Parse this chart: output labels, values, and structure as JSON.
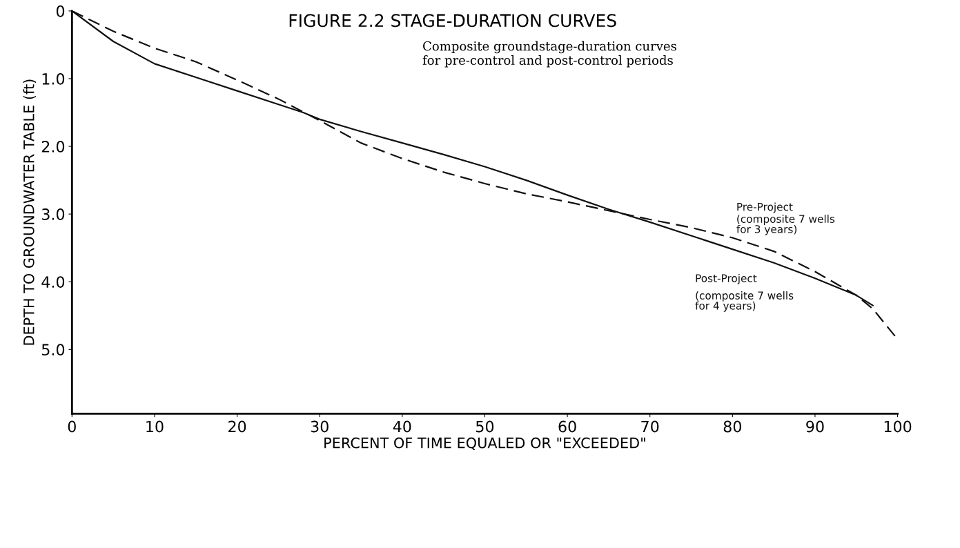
{
  "chart_data": {
    "type": "line",
    "title": "FIGURE 2.2 STAGE-DURATION CURVES",
    "subtitle": "Composite groundstage-duration curves\nfor pre-control and post-control periods",
    "xlabel": "PERCENT OF TIME EQUALED OR \"EXCEEDED\"",
    "ylabel": "DEPTH TO GROUNDWATER TABLE (ft)",
    "xlim": [
      0,
      100
    ],
    "xticks": [
      0,
      10,
      20,
      30,
      40,
      50,
      60,
      70,
      80,
      90,
      100
    ],
    "ylim": [
      5.95,
      0
    ],
    "yticks": [
      0,
      {
        "value": 1,
        "label": "1.0"
      },
      {
        "value": 2,
        "label": "2.0"
      },
      {
        "value": 3,
        "label": "3.0"
      },
      {
        "value": 4,
        "label": "4.0"
      },
      {
        "value": 5,
        "label": "5.0"
      }
    ],
    "grid": false,
    "legend": false,
    "marker": "none",
    "series": [
      {
        "name": "Pre-Project",
        "color": "#111111",
        "line_style": "dashed",
        "x": [
          0,
          5,
          10,
          15,
          20,
          25,
          30,
          35,
          40,
          45,
          50,
          55,
          60,
          65,
          70,
          75,
          80,
          85,
          90,
          95,
          97,
          100
        ],
        "values": [
          0,
          0.3,
          0.55,
          0.75,
          1.02,
          1.3,
          1.62,
          1.95,
          2.18,
          2.38,
          2.55,
          2.7,
          2.82,
          2.95,
          3.08,
          3.2,
          3.35,
          3.55,
          3.85,
          4.2,
          4.4,
          4.85
        ]
      },
      {
        "name": "Post-Project",
        "color": "#111111",
        "line_style": "solid",
        "x": [
          0,
          5,
          10,
          15,
          20,
          25,
          28,
          30,
          35,
          40,
          45,
          50,
          55,
          60,
          65,
          70,
          75,
          80,
          85,
          90,
          95,
          97
        ],
        "values": [
          0,
          0.45,
          0.78,
          0.98,
          1.18,
          1.38,
          1.5,
          1.6,
          1.78,
          1.95,
          2.12,
          2.3,
          2.5,
          2.72,
          2.93,
          3.12,
          3.32,
          3.52,
          3.72,
          3.95,
          4.2,
          4.35
        ]
      }
    ],
    "annotations": [
      "(composite 7 wells\nfor 3 years)",
      "(composite 7 wells\nfor 4 years)"
    ]
  }
}
